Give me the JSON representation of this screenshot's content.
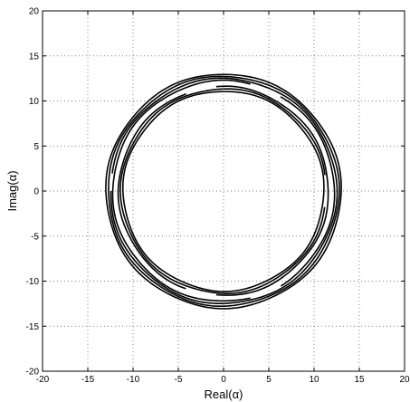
{
  "chart_data": {
    "type": "line",
    "title": "",
    "xlabel": "Real(α)",
    "ylabel": "Imag(α)",
    "xlim": [
      -20,
      20
    ],
    "ylim": [
      -20,
      20
    ],
    "xticks": [
      -20,
      -15,
      -10,
      -5,
      0,
      5,
      10,
      15,
      20
    ],
    "yticks": [
      -20,
      -15,
      -10,
      -5,
      0,
      5,
      10,
      15,
      20
    ],
    "grid": true,
    "grid_style": "dotted",
    "legend": "none",
    "line_color": "#000000",
    "series": [
      {
        "description_points": "closed contours traced in the complex plane (real, imaginary)",
        "curves": [
          {
            "center": [
              0,
              0
            ],
            "radius": 13.0
          },
          {
            "center": [
              0,
              0
            ],
            "radius": 12.75
          },
          {
            "center": [
              0,
              0
            ],
            "radius": 12.5
          },
          {
            "center": [
              0,
              0
            ],
            "radius": 12.25
          },
          {
            "center": [
              0,
              0
            ],
            "radius": 11.6
          },
          {
            "center": [
              0,
              0
            ],
            "radius": 11.35
          },
          {
            "center": [
              0,
              0
            ],
            "radius": 11.1
          }
        ],
        "gaps": [
          {
            "radius": 12.25,
            "from_deg": 60,
            "to_deg": 75
          },
          {
            "radius": 12.25,
            "from_deg": -75,
            "to_deg": -60
          },
          {
            "radius": 11.6,
            "from_deg": 95,
            "to_deg": 110
          },
          {
            "radius": 11.6,
            "from_deg": -110,
            "to_deg": -95
          },
          {
            "radius": 11.35,
            "from_deg": -8,
            "to_deg": 8
          },
          {
            "radius": 12.5,
            "from_deg": 172,
            "to_deg": 188
          }
        ]
      }
    ]
  }
}
